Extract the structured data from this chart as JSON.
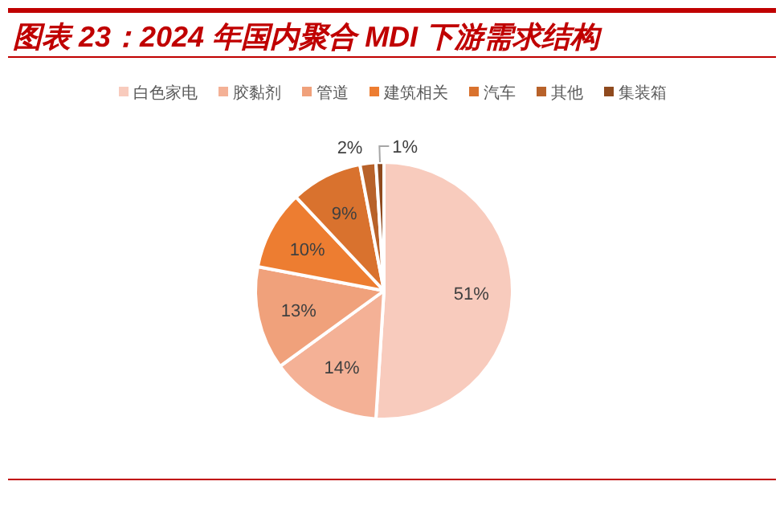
{
  "chart_data": {
    "type": "pie",
    "title": "图表 23：2024 年国内聚合 MDI 下游需求结构",
    "categories": [
      "白色家电",
      "胶黏剂",
      "管道",
      "建筑相关",
      "汽车",
      "其他",
      "集装箱"
    ],
    "values": [
      51,
      14,
      13,
      10,
      9,
      2,
      1
    ],
    "colors": [
      "#f8cbbd",
      "#f4b196",
      "#f0a17b",
      "#ed7d31",
      "#d9722e",
      "#b8622a",
      "#8f4a1e"
    ],
    "value_labels": [
      "51%",
      "14%",
      "13%",
      "10%",
      "9%",
      "2%",
      "1%"
    ],
    "legend": "top"
  }
}
